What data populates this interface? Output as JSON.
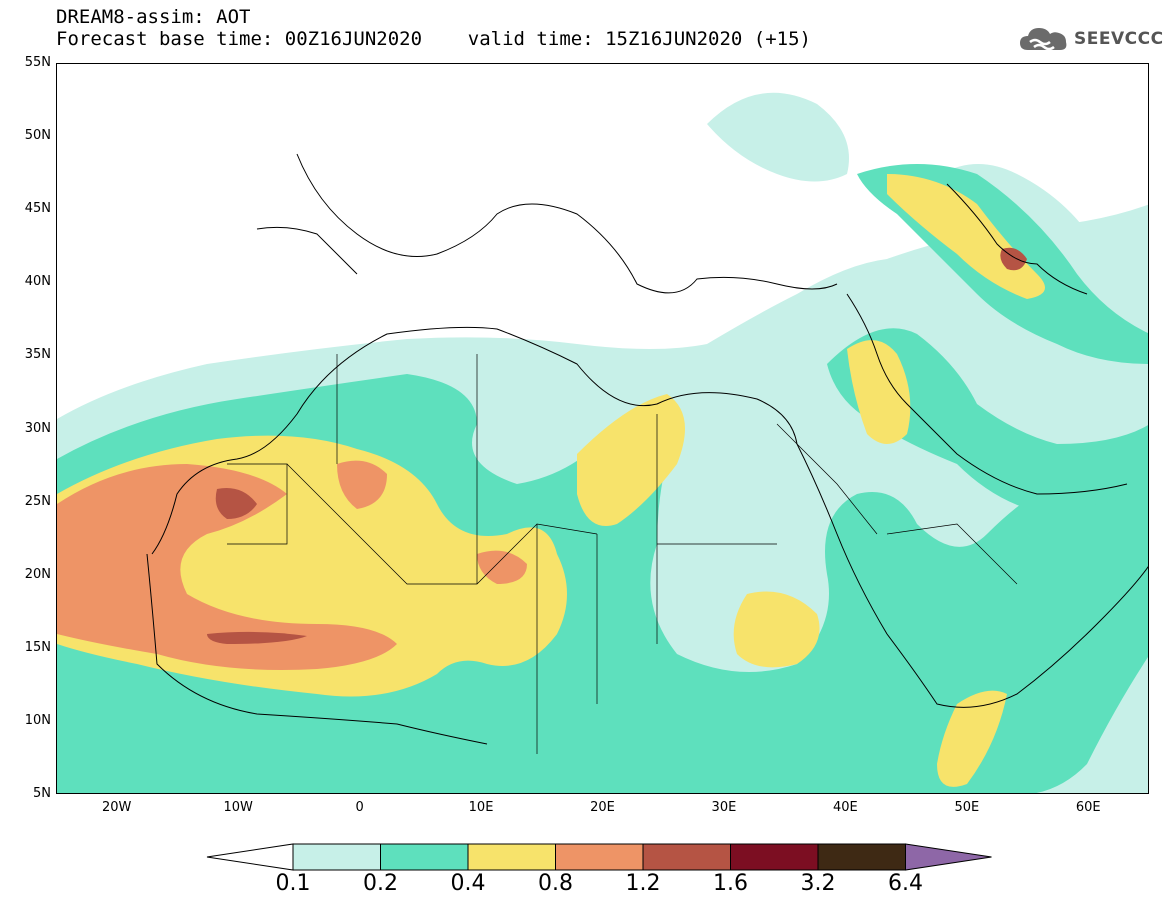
{
  "title": {
    "line1": "DREAM8-assim: AOT",
    "line2": "Forecast base time: 00Z16JUN2020    valid time: 15Z16JUN2020 (+15)"
  },
  "logo": {
    "text": "SEEVCCC",
    "icon": "cloud-icon"
  },
  "map": {
    "lon_range": [
      -25,
      65
    ],
    "lat_range": [
      5,
      55
    ],
    "lat_ticks": [
      {
        "lat": 55,
        "label": "55N"
      },
      {
        "lat": 50,
        "label": "50N"
      },
      {
        "lat": 45,
        "label": "45N"
      },
      {
        "lat": 40,
        "label": "40N"
      },
      {
        "lat": 35,
        "label": "35N"
      },
      {
        "lat": 30,
        "label": "30N"
      },
      {
        "lat": 25,
        "label": "25N"
      },
      {
        "lat": 20,
        "label": "20N"
      },
      {
        "lat": 15,
        "label": "15N"
      },
      {
        "lat": 10,
        "label": "10N"
      },
      {
        "lat": 5,
        "label": "5N"
      }
    ],
    "lon_ticks": [
      {
        "lon": -20,
        "label": "20W"
      },
      {
        "lon": -10,
        "label": "10W"
      },
      {
        "lon": 0,
        "label": "0"
      },
      {
        "lon": 10,
        "label": "10E"
      },
      {
        "lon": 20,
        "label": "20E"
      },
      {
        "lon": 30,
        "label": "30E"
      },
      {
        "lon": 40,
        "label": "40E"
      },
      {
        "lon": 50,
        "label": "50E"
      },
      {
        "lon": 60,
        "label": "60E"
      }
    ]
  },
  "colorbar": {
    "labels": [
      "0.1",
      "0.2",
      "0.4",
      "0.8",
      "1.2",
      "1.6",
      "3.2",
      "6.4"
    ],
    "colors": [
      "#ffffff",
      "#c7f0e8",
      "#5ee0bd",
      "#f7e36b",
      "#ee9466",
      "#b55444",
      "#7c0e22",
      "#3e2914",
      "#8e67a7"
    ]
  }
}
